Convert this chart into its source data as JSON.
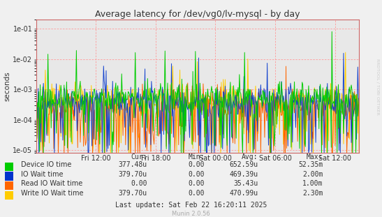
{
  "title": "Average latency for /dev/vg0/lv-mysql - by day",
  "ylabel": "seconds",
  "xtick_labels": [
    "Fri 12:00",
    "Fri 18:00",
    "Sat 00:00",
    "Sat 06:00",
    "Sat 12:00"
  ],
  "xtick_positions": [
    0.185,
    0.37,
    0.555,
    0.74,
    0.925
  ],
  "ymin": 8e-06,
  "ymax": 0.2,
  "bg_color": "#f0f0f0",
  "plot_bg_color": "#e8e8e8",
  "grid_color_h": "#ff9999",
  "grid_color_v": "#ff9999",
  "colors": {
    "device_io": "#00cc00",
    "io_wait": "#0033cc",
    "read_io_wait": "#ff6600",
    "write_io_wait": "#ffcc00"
  },
  "legend_labels": [
    "Device IO time",
    "IO Wait time",
    "Read IO Wait time",
    "Write IO Wait time"
  ],
  "legend_colors": [
    "#00cc00",
    "#0033cc",
    "#ff6600",
    "#ffcc00"
  ],
  "table_headers": [
    "Cur:",
    "Min:",
    "Avg:",
    "Max:"
  ],
  "table_data": [
    [
      "377.48u",
      "0.00",
      "652.59u",
      "52.35m"
    ],
    [
      "379.70u",
      "0.00",
      "469.39u",
      "2.00m"
    ],
    [
      "0.00",
      "0.00",
      "35.43u",
      "1.00m"
    ],
    [
      "379.70u",
      "0.00",
      "470.99u",
      "2.30m"
    ]
  ],
  "last_update": "Last update: Sat Feb 22 16:20:11 2025",
  "watermark": "Munin 2.0.56",
  "rrdtool_label": "RRDTOOL / TOBI OETIKER",
  "n_points": 500
}
